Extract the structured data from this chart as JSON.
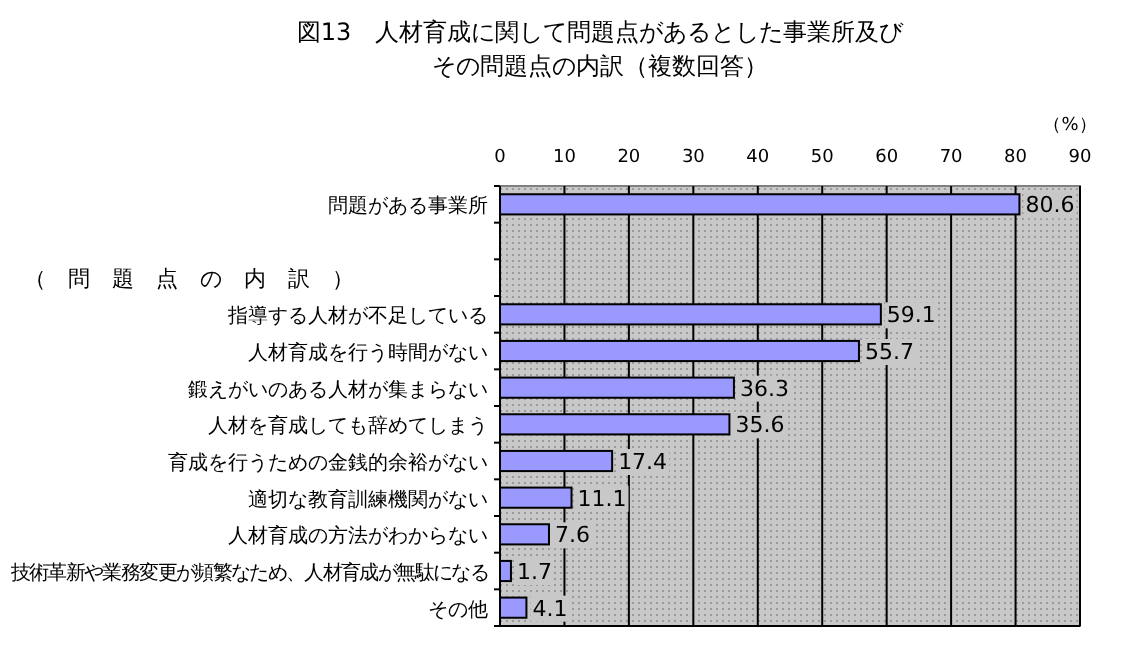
{
  "chart_data": {
    "type": "bar",
    "orientation": "horizontal",
    "title": "図13　人材育成に関して問題点があるとした事業所及び",
    "subtitle": "その問題点の内訳（複数回答）",
    "xlabel": "（%）",
    "categories": [
      "問題がある事業所",
      null,
      null,
      "指導する人材が不足している",
      "人材育成を行う時間がない",
      "鍛えがいのある人材が集まらない",
      "人材を育成しても辞めてしまう",
      "育成を行うための金銭的余裕がない",
      "適切な教育訓練機関がない",
      "人材育成の方法がわからない",
      "技術革新や業務変更が頻繁なため、人材育成が無駄になる",
      "その他"
    ],
    "values": [
      80.6,
      null,
      null,
      59.1,
      55.7,
      36.3,
      35.6,
      17.4,
      11.1,
      7.6,
      1.7,
      4.1
    ],
    "color": "#9999ff",
    "data_labels": true,
    "grid": "x",
    "xlim": [
      0,
      90
    ],
    "xticks": [
      0,
      10,
      20,
      30,
      40,
      50,
      60,
      70,
      80,
      90
    ],
    "annotations": [
      "（　問　題　点　の　内　訳　）"
    ]
  }
}
